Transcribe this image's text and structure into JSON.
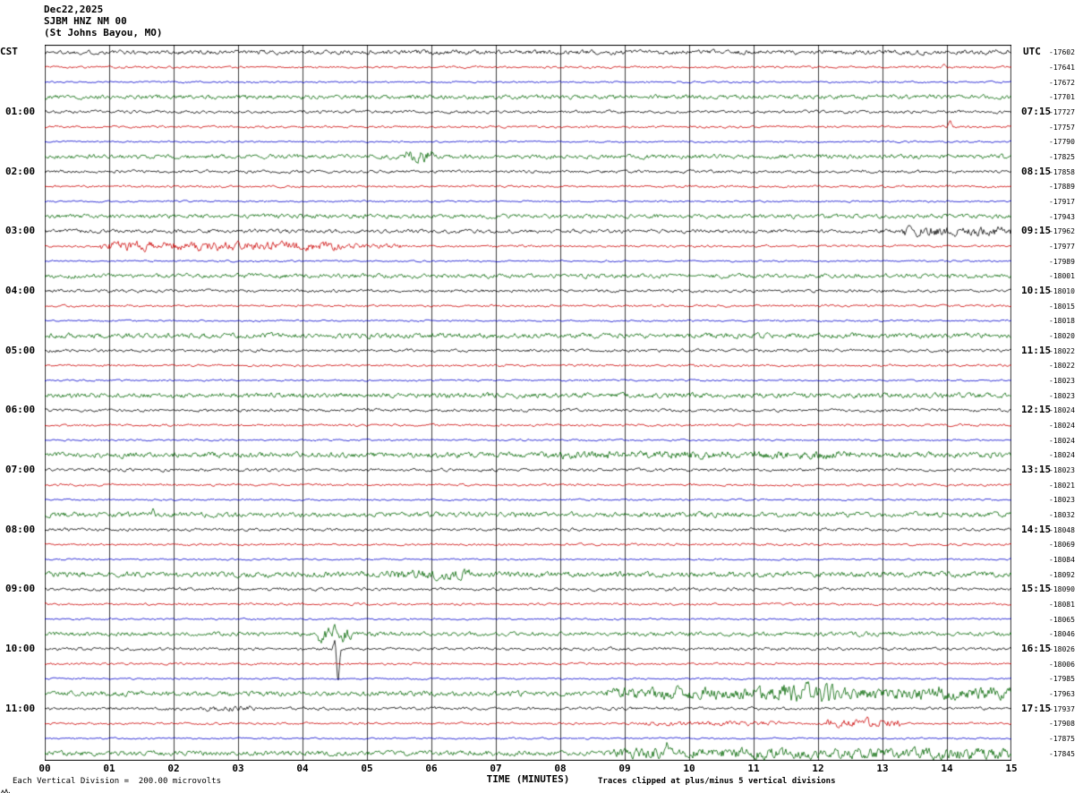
{
  "header": {
    "date": "Dec22,2025",
    "station": "SJBM HNZ NM 00",
    "location": "(St Johns Bayou, MO)"
  },
  "axes": {
    "left_label": "CST",
    "right_label": "UTC",
    "left_hour_labels": [
      "01:00",
      "02:00",
      "03:00",
      "04:00",
      "05:00",
      "06:00",
      "07:00",
      "08:00",
      "09:00",
      "10:00",
      "11:00"
    ],
    "right_hour_labels": [
      "07:15",
      "08:15",
      "09:15",
      "10:15",
      "11:15",
      "12:15",
      "13:15",
      "14:15",
      "15:15",
      "16:15",
      "17:15"
    ],
    "x_tick_labels": [
      "00",
      "01",
      "02",
      "03",
      "04",
      "05",
      "06",
      "07",
      "08",
      "09",
      "10",
      "11",
      "12",
      "13",
      "14",
      "15"
    ],
    "x_axis_title": "TIME (MINUTES)"
  },
  "footer": {
    "scale_note": "Each Vertical Division =  200.00 microvolts",
    "clip_note": "Traces clipped at plus/minus 5 vertical divisions"
  },
  "chart_data": {
    "type": "line",
    "title": "SJBM HNZ NM 00 (St Johns Bayou, MO) Dec22,2025 helicorder",
    "xlabel": "TIME (MINUTES)",
    "x_range": [
      0,
      15
    ],
    "rows": 48,
    "minutes_per_row": 15,
    "traces_per_hour": 4,
    "grid": true,
    "row_colors_cycle": [
      "#000000",
      "#cc0000",
      "#0000cc",
      "#006600"
    ],
    "grid_color": "#3c3c3c",
    "baseline_counts": [
      -17602,
      -17641,
      -17672,
      -17701,
      -17727,
      -17757,
      -17790,
      -17825,
      -17858,
      -17889,
      -17917,
      -17943,
      -17962,
      -17977,
      -17989,
      -18001,
      -18010,
      -18015,
      -18018,
      -18020,
      -18022,
      -18022,
      -18023,
      -18023,
      -18024,
      -18024,
      -18024,
      -18024,
      -18023,
      -18021,
      -18023,
      -18032,
      -18048,
      -18069,
      -18084,
      -18092,
      -18090,
      -18081,
      -18065,
      -18046,
      -18026,
      -18006,
      -17985,
      -17963,
      -17937,
      -17908,
      -17875,
      -17845
    ],
    "base_amplitude_by_color": {
      "black": 1.2,
      "red": 0.9,
      "blue": 0.7,
      "green": 1.7
    },
    "row_amplitude_overrides": {
      "0": 1.8,
      "12": 1.5,
      "19": 2.0,
      "23": 2.0,
      "27": 2.2,
      "31": 2.0,
      "35": 2.2,
      "43": 2.0,
      "47": 2.0
    },
    "events": [
      {
        "row": 13,
        "start": 0.85,
        "end": 4.6,
        "amp": 4.0,
        "note": "sustained high-amplitude burst on 03:15 CST red trace"
      },
      {
        "row": 13,
        "start": 4.6,
        "end": 5.6,
        "amp": 2.2,
        "note": "decaying tail of burst"
      },
      {
        "row": 12,
        "start": 13.3,
        "end": 15,
        "amp": 2.6
      },
      {
        "row": 7,
        "start": 5.6,
        "end": 6.05,
        "amp": 2.8
      },
      {
        "row": 27,
        "start": 8.0,
        "end": 12.5,
        "amp": 1.5
      },
      {
        "row": 35,
        "start": 5.3,
        "end": 6.6,
        "amp": 1.8
      },
      {
        "row": 39,
        "start": 4.25,
        "end": 4.75,
        "amp": 3.5
      },
      {
        "row": 43,
        "start": 8.7,
        "end": 15,
        "amp": 2.4
      },
      {
        "row": 43,
        "start": 11.4,
        "end": 12.4,
        "amp": 3.8
      },
      {
        "row": 45,
        "start": 9.3,
        "end": 11.4,
        "amp": 2.0
      },
      {
        "row": 45,
        "start": 12.1,
        "end": 13.3,
        "amp": 3.6
      },
      {
        "row": 47,
        "start": 8.8,
        "end": 15,
        "amp": 2.2
      },
      {
        "row": 44,
        "start": 2.5,
        "end": 3.3,
        "amp": 1.8
      }
    ],
    "spikes": [
      {
        "row": 1,
        "x": 13.95,
        "h": 5
      },
      {
        "row": 5,
        "x": 14.05,
        "h": 7
      },
      {
        "row": 31,
        "x": 1.68,
        "h": 6
      },
      {
        "row": 39,
        "x": 4.5,
        "h": 11
      },
      {
        "row": 40,
        "x": 4.55,
        "h": -40
      },
      {
        "row": 40,
        "x": 4.5,
        "h": 9
      },
      {
        "row": 43,
        "x": 9.8,
        "h": 7
      },
      {
        "row": 43,
        "x": 13.9,
        "h": 6
      },
      {
        "row": 45,
        "x": 12.75,
        "h": 8
      },
      {
        "row": 47,
        "x": 9.65,
        "h": 9
      }
    ]
  }
}
